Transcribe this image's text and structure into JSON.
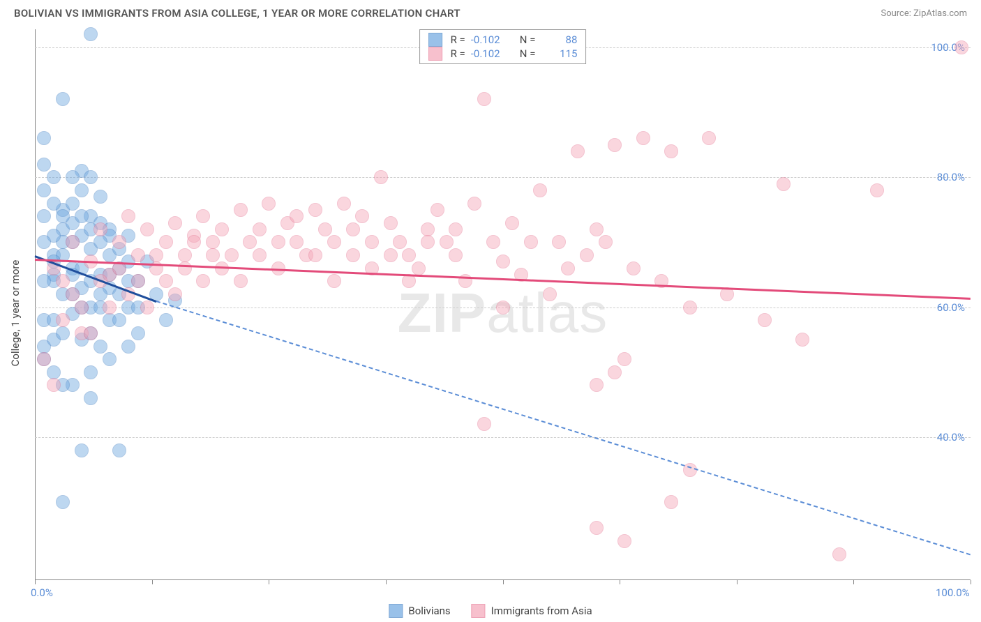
{
  "header": {
    "title": "BOLIVIAN VS IMMIGRANTS FROM ASIA COLLEGE, 1 YEAR OR MORE CORRELATION CHART",
    "source": "Source: ZipAtlas.com"
  },
  "chart": {
    "type": "scatter",
    "ylabel": "College, 1 year or more",
    "xlim": [
      0,
      100
    ],
    "ylim": [
      18,
      103
    ],
    "yticks": [
      40,
      60,
      80,
      100
    ],
    "ytick_labels": [
      "40.0%",
      "60.0%",
      "80.0%",
      "100.0%"
    ],
    "xticks": [
      0,
      12.5,
      25,
      37.5,
      50,
      62.5,
      75,
      87.5,
      100
    ],
    "xtick_labels": {
      "0": "0.0%",
      "100": "100.0%"
    },
    "background_color": "#ffffff",
    "grid_color": "#cccccc",
    "marker_radius": 10,
    "marker_opacity": 0.45,
    "series": [
      {
        "name": "Bolivians",
        "color": "#6fa8e0",
        "border": "#4a84c4",
        "R": "-0.102",
        "N": "88",
        "trend": {
          "x1": 0,
          "y1": 68,
          "x2_solid": 13,
          "y2_solid": 61,
          "x2": 100,
          "y2": 22,
          "color_solid": "#1f4e9c",
          "color_dash": "#5b8dd6"
        },
        "points": [
          [
            2,
            68
          ],
          [
            2,
            65
          ],
          [
            3,
            72
          ],
          [
            3,
            75
          ],
          [
            4,
            70
          ],
          [
            4,
            66
          ],
          [
            5,
            78
          ],
          [
            5,
            81
          ],
          [
            5,
            63
          ],
          [
            6,
            74
          ],
          [
            6,
            69
          ],
          [
            6,
            60
          ],
          [
            7,
            73
          ],
          [
            7,
            77
          ],
          [
            1,
            86
          ],
          [
            8,
            72
          ],
          [
            8,
            68
          ],
          [
            8,
            63
          ],
          [
            2,
            80
          ],
          [
            9,
            66
          ],
          [
            1,
            52
          ],
          [
            10,
            71
          ],
          [
            10,
            60
          ],
          [
            3,
            92
          ],
          [
            11,
            64
          ],
          [
            12,
            67
          ],
          [
            6,
            102
          ],
          [
            13,
            62
          ],
          [
            2,
            76
          ],
          [
            14,
            58
          ],
          [
            3,
            68
          ],
          [
            15,
            61
          ],
          [
            5,
            71
          ],
          [
            3,
            62
          ],
          [
            4,
            59
          ],
          [
            1,
            74
          ],
          [
            2,
            55
          ],
          [
            6,
            80
          ],
          [
            4,
            73
          ],
          [
            7,
            65
          ],
          [
            1,
            78
          ],
          [
            8,
            58
          ],
          [
            5,
            66
          ],
          [
            3,
            70
          ],
          [
            2,
            64
          ],
          [
            6,
            56
          ],
          [
            9,
            69
          ],
          [
            7,
            62
          ],
          [
            4,
            76
          ],
          [
            10,
            64
          ],
          [
            1,
            58
          ],
          [
            11,
            60
          ],
          [
            9,
            38
          ],
          [
            5,
            74
          ],
          [
            8,
            71
          ],
          [
            2,
            71
          ],
          [
            6,
            64
          ],
          [
            3,
            56
          ],
          [
            7,
            70
          ],
          [
            4,
            62
          ],
          [
            1,
            54
          ],
          [
            10,
            67
          ],
          [
            5,
            60
          ],
          [
            2,
            50
          ],
          [
            8,
            65
          ],
          [
            6,
            72
          ],
          [
            3,
            74
          ],
          [
            9,
            62
          ],
          [
            1,
            82
          ],
          [
            4,
            48
          ],
          [
            7,
            60
          ],
          [
            5,
            55
          ],
          [
            2,
            67
          ],
          [
            11,
            56
          ],
          [
            6,
            46
          ],
          [
            3,
            30
          ],
          [
            8,
            52
          ],
          [
            1,
            70
          ],
          [
            4,
            65
          ],
          [
            5,
            38
          ],
          [
            9,
            58
          ],
          [
            2,
            58
          ],
          [
            7,
            54
          ],
          [
            6,
            50
          ],
          [
            3,
            48
          ],
          [
            10,
            54
          ],
          [
            4,
            80
          ],
          [
            1,
            64
          ]
        ]
      },
      {
        "name": "Immigrants from Asia",
        "color": "#f5a6b8",
        "border": "#e67a96",
        "R": "-0.102",
        "N": "115",
        "trend": {
          "x1": 0,
          "y1": 67.5,
          "x2_solid": 100,
          "y2_solid": 61.5,
          "x2": 100,
          "y2": 61.5,
          "color_solid": "#e34b7a",
          "color_dash": "#e34b7a"
        },
        "points": [
          [
            1,
            52
          ],
          [
            2,
            66
          ],
          [
            3,
            64
          ],
          [
            4,
            70
          ],
          [
            5,
            56
          ],
          [
            6,
            67
          ],
          [
            7,
            72
          ],
          [
            8,
            65
          ],
          [
            9,
            70
          ],
          [
            10,
            74
          ],
          [
            11,
            68
          ],
          [
            12,
            72
          ],
          [
            13,
            66
          ],
          [
            14,
            70
          ],
          [
            15,
            73
          ],
          [
            16,
            68
          ],
          [
            17,
            71
          ],
          [
            18,
            74
          ],
          [
            19,
            70
          ],
          [
            20,
            72
          ],
          [
            21,
            68
          ],
          [
            22,
            75
          ],
          [
            23,
            70
          ],
          [
            24,
            72
          ],
          [
            25,
            76
          ],
          [
            26,
            70
          ],
          [
            27,
            73
          ],
          [
            28,
            74
          ],
          [
            29,
            68
          ],
          [
            30,
            75
          ],
          [
            31,
            72
          ],
          [
            32,
            70
          ],
          [
            33,
            76
          ],
          [
            34,
            68
          ],
          [
            35,
            74
          ],
          [
            36,
            70
          ],
          [
            37,
            80
          ],
          [
            38,
            73
          ],
          [
            39,
            70
          ],
          [
            40,
            68
          ],
          [
            41,
            66
          ],
          [
            42,
            72
          ],
          [
            43,
            75
          ],
          [
            44,
            70
          ],
          [
            45,
            68
          ],
          [
            46,
            64
          ],
          [
            47,
            76
          ],
          [
            48,
            92
          ],
          [
            49,
            70
          ],
          [
            50,
            67
          ],
          [
            51,
            73
          ],
          [
            52,
            65
          ],
          [
            53,
            70
          ],
          [
            54,
            78
          ],
          [
            55,
            62
          ],
          [
            56,
            70
          ],
          [
            57,
            66
          ],
          [
            58,
            84
          ],
          [
            59,
            68
          ],
          [
            60,
            72
          ],
          [
            61,
            70
          ],
          [
            62,
            85
          ],
          [
            48,
            42
          ],
          [
            64,
            66
          ],
          [
            65,
            86
          ],
          [
            60,
            48
          ],
          [
            67,
            64
          ],
          [
            68,
            84
          ],
          [
            62,
            50
          ],
          [
            70,
            60
          ],
          [
            72,
            86
          ],
          [
            63,
            52
          ],
          [
            74,
            62
          ],
          [
            68,
            30
          ],
          [
            70,
            35
          ],
          [
            78,
            58
          ],
          [
            60,
            26
          ],
          [
            80,
            79
          ],
          [
            99,
            100
          ],
          [
            82,
            55
          ],
          [
            86,
            22
          ],
          [
            90,
            78
          ],
          [
            63,
            24
          ],
          [
            2,
            48
          ],
          [
            3,
            58
          ],
          [
            4,
            62
          ],
          [
            5,
            60
          ],
          [
            6,
            56
          ],
          [
            7,
            64
          ],
          [
            8,
            60
          ],
          [
            9,
            66
          ],
          [
            10,
            62
          ],
          [
            11,
            64
          ],
          [
            12,
            60
          ],
          [
            13,
            68
          ],
          [
            14,
            64
          ],
          [
            15,
            62
          ],
          [
            16,
            66
          ],
          [
            17,
            70
          ],
          [
            18,
            64
          ],
          [
            19,
            68
          ],
          [
            20,
            66
          ],
          [
            22,
            64
          ],
          [
            24,
            68
          ],
          [
            26,
            66
          ],
          [
            28,
            70
          ],
          [
            30,
            68
          ],
          [
            32,
            64
          ],
          [
            34,
            72
          ],
          [
            36,
            66
          ],
          [
            38,
            68
          ],
          [
            40,
            64
          ],
          [
            42,
            70
          ],
          [
            45,
            72
          ],
          [
            50,
            60
          ]
        ]
      }
    ],
    "legend_labels": [
      "Bolivians",
      "Immigrants from Asia"
    ],
    "watermark": "ZIPatlas"
  }
}
